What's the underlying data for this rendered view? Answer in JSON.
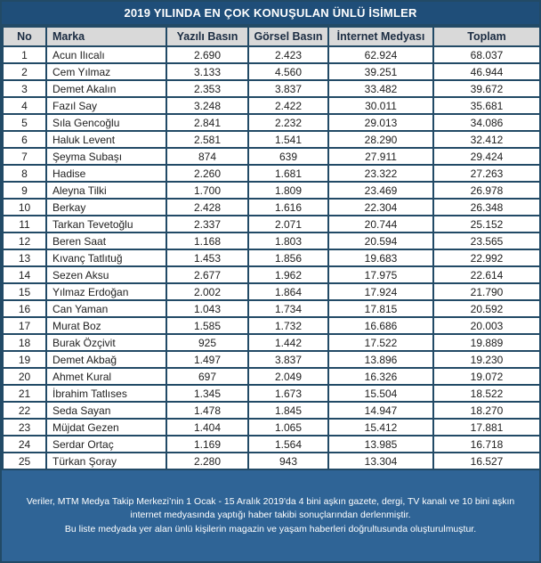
{
  "title": "2019 YILINDA EN ÇOK KONUŞULAN ÜNLÜ İSİMLER",
  "colors": {
    "title_bg": "#1F4E79",
    "border": "#224A66",
    "header_bg": "#D9D9D9",
    "header_text": "#1B2C42",
    "footer_bg": "#2F6496",
    "text": "#212121"
  },
  "table": {
    "headers": [
      "No",
      "Marka",
      "Yazılı Basın",
      "Görsel Basın",
      "İnternet Medyası",
      "Toplam"
    ],
    "rows": [
      [
        "1",
        "Acun Ilıcalı",
        "2.690",
        "2.423",
        "62.924",
        "68.037"
      ],
      [
        "2",
        "Cem Yılmaz",
        "3.133",
        "4.560",
        "39.251",
        "46.944"
      ],
      [
        "3",
        "Demet Akalın",
        "2.353",
        "3.837",
        "33.482",
        "39.672"
      ],
      [
        "4",
        "Fazıl Say",
        "3.248",
        "2.422",
        "30.011",
        "35.681"
      ],
      [
        "5",
        "Sıla Gencoğlu",
        "2.841",
        "2.232",
        "29.013",
        "34.086"
      ],
      [
        "6",
        "Haluk Levent",
        "2.581",
        "1.541",
        "28.290",
        "32.412"
      ],
      [
        "7",
        "Şeyma Subaşı",
        "874",
        "639",
        "27.911",
        "29.424"
      ],
      [
        "8",
        "Hadise",
        "2.260",
        "1.681",
        "23.322",
        "27.263"
      ],
      [
        "9",
        "Aleyna Tilki",
        "1.700",
        "1.809",
        "23.469",
        "26.978"
      ],
      [
        "10",
        "Berkay",
        "2.428",
        "1.616",
        "22.304",
        "26.348"
      ],
      [
        "11",
        "Tarkan Tevetoğlu",
        "2.337",
        "2.071",
        "20.744",
        "25.152"
      ],
      [
        "12",
        "Beren Saat",
        "1.168",
        "1.803",
        "20.594",
        "23.565"
      ],
      [
        "13",
        "Kıvanç Tatlıtuğ",
        "1.453",
        "1.856",
        "19.683",
        "22.992"
      ],
      [
        "14",
        "Sezen Aksu",
        "2.677",
        "1.962",
        "17.975",
        "22.614"
      ],
      [
        "15",
        "Yılmaz Erdoğan",
        "2.002",
        "1.864",
        "17.924",
        "21.790"
      ],
      [
        "16",
        "Can Yaman",
        "1.043",
        "1.734",
        "17.815",
        "20.592"
      ],
      [
        "17",
        "Murat Boz",
        "1.585",
        "1.732",
        "16.686",
        "20.003"
      ],
      [
        "18",
        "Burak Özçivit",
        "925",
        "1.442",
        "17.522",
        "19.889"
      ],
      [
        "19",
        "Demet Akbağ",
        "1.497",
        "3.837",
        "13.896",
        "19.230"
      ],
      [
        "20",
        "Ahmet Kural",
        "697",
        "2.049",
        "16.326",
        "19.072"
      ],
      [
        "21",
        "İbrahim Tatlıses",
        "1.345",
        "1.673",
        "15.504",
        "18.522"
      ],
      [
        "22",
        "Seda Sayan",
        "1.478",
        "1.845",
        "14.947",
        "18.270"
      ],
      [
        "23",
        "Müjdat Gezen",
        "1.404",
        "1.065",
        "15.412",
        "17.881"
      ],
      [
        "24",
        "Serdar Ortaç",
        "1.169",
        "1.564",
        "13.985",
        "16.718"
      ],
      [
        "25",
        "Türkan Şoray",
        "2.280",
        "943",
        "13.304",
        "16.527"
      ]
    ]
  },
  "footer": {
    "line1": "Veriler, MTM Medya Takip Merkezi’nin 1 Ocak - 15 Aralık 2019'da 4 bini aşkın gazete, dergi, TV kanalı ve 10 bini aşkın internet medyasında yaptığı haber takibi sonuçlarından derlenmiştir.",
    "line2": "Bu liste medyada yer alan ünlü kişilerin magazin ve yaşam haberleri doğrultusunda oluşturulmuştur."
  }
}
